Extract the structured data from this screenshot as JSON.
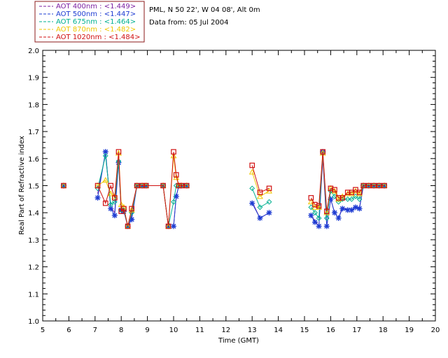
{
  "chart_data": {
    "type": "line",
    "xlabel": "Time (GMT)",
    "ylabel": "Real Part of Refractive index",
    "xlim": [
      5,
      20
    ],
    "ylim": [
      1.0,
      2.0
    ],
    "x_ticks": [
      "5",
      "6",
      "7",
      "8",
      "9",
      "10",
      "11",
      "12",
      "13",
      "14",
      "15",
      "16",
      "17",
      "18",
      "19",
      "20"
    ],
    "y_ticks": [
      "1.0",
      "1.1",
      "1.2",
      "1.3",
      "1.4",
      "1.5",
      "1.6",
      "1.7",
      "1.8",
      "1.9",
      "2.0"
    ],
    "site_text": "PML, N 50 22', W 04 08', Alt 0m",
    "date_text": "Data from: 05 Jul 2004",
    "grid": false,
    "legend_position": "top-left",
    "series": [
      {
        "name": "AOT  400nm : <1.449>",
        "color": "#7b1fa2",
        "marker": "none",
        "x": [
          5.8,
          7.1,
          7.4,
          7.6,
          7.75,
          7.9,
          8.0,
          8.1,
          8.25,
          8.4,
          8.6,
          8.8,
          8.95,
          9.6,
          9.8,
          9.9,
          10.0,
          10.1,
          10.2,
          10.3,
          10.5,
          13.0,
          13.3,
          13.65,
          15.25,
          15.4,
          15.55,
          15.7,
          15.85,
          16.0,
          16.15,
          16.3,
          16.45,
          16.65,
          16.8,
          16.95,
          17.1,
          17.25,
          17.45,
          17.65,
          17.85,
          18.05
        ],
        "y": [
          1.5,
          1.47,
          1.62,
          1.42,
          1.4,
          1.6,
          1.4,
          1.41,
          1.35,
          1.39,
          1.5,
          1.5,
          1.5,
          1.5,
          1.35,
          1.35,
          1.35,
          1.46,
          1.5,
          1.5,
          1.5,
          1.44,
          1.38,
          1.4,
          1.39,
          1.37,
          1.35,
          1.6,
          1.35,
          1.45,
          1.4,
          1.38,
          1.42,
          1.41,
          1.41,
          1.42,
          1.42,
          1.5,
          1.5,
          1.5,
          1.5,
          1.5
        ]
      },
      {
        "name": "AOT  500nm : <1.447>",
        "color": "#1e3cd2",
        "marker": "star",
        "x": [
          5.8,
          7.1,
          7.4,
          7.6,
          7.75,
          7.9,
          8.0,
          8.1,
          8.25,
          8.4,
          8.6,
          8.8,
          8.95,
          9.6,
          9.8,
          10.0,
          10.1,
          10.2,
          10.3,
          10.5,
          13.0,
          13.3,
          13.65,
          15.25,
          15.4,
          15.55,
          15.7,
          15.85,
          16.0,
          16.15,
          16.3,
          16.45,
          16.65,
          16.8,
          16.95,
          17.1,
          17.25,
          17.45,
          17.65,
          17.85,
          18.05
        ],
        "y": [
          1.5,
          1.455,
          1.625,
          1.415,
          1.39,
          1.585,
          1.41,
          1.405,
          1.35,
          1.375,
          1.5,
          1.5,
          1.5,
          1.5,
          1.35,
          1.35,
          1.46,
          1.5,
          1.5,
          1.5,
          1.435,
          1.38,
          1.4,
          1.39,
          1.365,
          1.35,
          1.625,
          1.35,
          1.45,
          1.4,
          1.38,
          1.415,
          1.41,
          1.41,
          1.42,
          1.415,
          1.5,
          1.5,
          1.5,
          1.5,
          1.5
        ]
      },
      {
        "name": "AOT  675nm : <1.464>",
        "color": "#00b090",
        "marker": "diamond",
        "x": [
          5.8,
          7.1,
          7.4,
          7.6,
          7.75,
          7.9,
          8.0,
          8.1,
          8.25,
          8.4,
          8.6,
          8.8,
          8.95,
          9.6,
          9.8,
          10.0,
          10.1,
          10.2,
          10.3,
          10.5,
          13.0,
          13.3,
          13.65,
          15.25,
          15.4,
          15.55,
          15.7,
          15.85,
          16.0,
          16.15,
          16.3,
          16.45,
          16.65,
          16.8,
          16.95,
          17.1,
          17.25,
          17.45,
          17.65,
          17.85,
          18.05
        ],
        "y": [
          1.5,
          1.49,
          1.61,
          1.43,
          1.44,
          1.59,
          1.41,
          1.41,
          1.35,
          1.4,
          1.5,
          1.5,
          1.5,
          1.5,
          1.35,
          1.44,
          1.5,
          1.5,
          1.5,
          1.5,
          1.49,
          1.42,
          1.44,
          1.42,
          1.4,
          1.38,
          1.62,
          1.38,
          1.48,
          1.46,
          1.44,
          1.45,
          1.45,
          1.45,
          1.46,
          1.45,
          1.5,
          1.5,
          1.5,
          1.5,
          1.5
        ]
      },
      {
        "name": "AOT  870nm : <1.482>",
        "color": "#f0c800",
        "marker": "triangle",
        "x": [
          5.8,
          7.1,
          7.4,
          7.6,
          7.75,
          7.9,
          8.0,
          8.1,
          8.25,
          8.4,
          8.6,
          8.8,
          8.95,
          9.6,
          9.8,
          10.0,
          10.1,
          10.2,
          10.3,
          10.5,
          13.0,
          13.3,
          13.65,
          15.25,
          15.4,
          15.55,
          15.7,
          15.85,
          16.0,
          16.15,
          16.3,
          16.45,
          16.65,
          16.8,
          16.95,
          17.1,
          17.25,
          17.45,
          17.65,
          17.85,
          18.05
        ],
        "y": [
          1.5,
          1.5,
          1.52,
          1.47,
          1.46,
          1.62,
          1.43,
          1.42,
          1.35,
          1.41,
          1.5,
          1.5,
          1.5,
          1.5,
          1.35,
          1.61,
          1.53,
          1.5,
          1.5,
          1.5,
          1.55,
          1.46,
          1.48,
          1.44,
          1.42,
          1.42,
          1.62,
          1.4,
          1.49,
          1.48,
          1.45,
          1.46,
          1.47,
          1.47,
          1.48,
          1.47,
          1.5,
          1.5,
          1.5,
          1.5,
          1.5
        ]
      },
      {
        "name": "AOT 1020nm : <1.484>",
        "color": "#d01010",
        "marker": "square",
        "x": [
          5.8,
          7.1,
          7.4,
          7.6,
          7.75,
          7.9,
          8.0,
          8.1,
          8.25,
          8.4,
          8.6,
          8.8,
          8.95,
          9.6,
          9.8,
          10.0,
          10.1,
          10.2,
          10.3,
          10.5,
          13.0,
          13.3,
          13.65,
          15.25,
          15.4,
          15.55,
          15.7,
          15.85,
          16.0,
          16.15,
          16.3,
          16.45,
          16.65,
          16.8,
          16.95,
          17.1,
          17.25,
          17.45,
          17.65,
          17.85,
          18.05
        ],
        "y": [
          1.5,
          1.5,
          1.435,
          1.5,
          1.455,
          1.625,
          1.405,
          1.415,
          1.35,
          1.415,
          1.5,
          1.5,
          1.5,
          1.5,
          1.35,
          1.625,
          1.54,
          1.5,
          1.5,
          1.5,
          1.575,
          1.475,
          1.49,
          1.455,
          1.43,
          1.425,
          1.625,
          1.405,
          1.49,
          1.485,
          1.455,
          1.455,
          1.475,
          1.475,
          1.485,
          1.475,
          1.5,
          1.5,
          1.5,
          1.5,
          1.5
        ]
      }
    ]
  }
}
